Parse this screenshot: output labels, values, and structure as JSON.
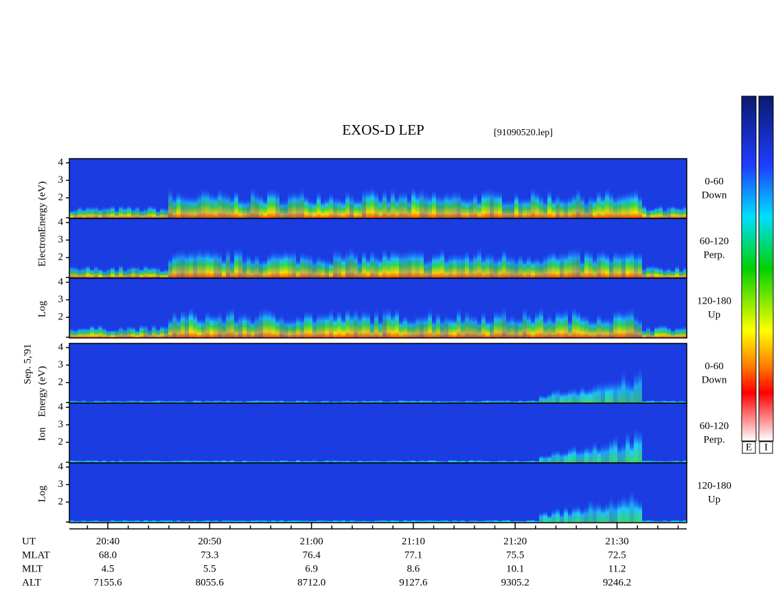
{
  "title": "EXOS-D LEP",
  "file": "[91090520.lep]",
  "date": "Sep. 5,'91",
  "y_ticks": [
    "4",
    "3",
    "2"
  ],
  "electron": {
    "ylabel_parts": [
      "Log",
      "Electron",
      "Energy (eV)"
    ],
    "panels": [
      {
        "range": "0-60",
        "dir": "Down"
      },
      {
        "range": "60-120",
        "dir": "Perp."
      },
      {
        "range": "120-180",
        "dir": "Up"
      }
    ]
  },
  "ion": {
    "ylabel_parts": [
      "Log",
      "Ion",
      "Energy (eV)"
    ],
    "panels": [
      {
        "range": "0-60",
        "dir": "Down"
      },
      {
        "range": "60-120",
        "dir": "Perp."
      },
      {
        "range": "120-180",
        "dir": "Up"
      }
    ]
  },
  "time_axis": {
    "label": "UT",
    "labels": [
      "20:40",
      "20:50",
      "21:00",
      "21:10",
      "21:20",
      "21:30"
    ]
  },
  "ephemeris": [
    {
      "label": "MLAT",
      "values": [
        "68.0",
        "73.3",
        "76.4",
        "77.1",
        "75.5",
        "72.5"
      ]
    },
    {
      "label": "MLT",
      "values": [
        "4.5",
        "5.5",
        "6.9",
        "8.6",
        "10.1",
        "11.2"
      ]
    },
    {
      "label": "ALT",
      "values": [
        "7155.6",
        "8055.6",
        "8712.0",
        "9127.6",
        "9305.2",
        "9246.2"
      ]
    }
  ],
  "colorbar_labels": [
    "E",
    "I"
  ]
}
